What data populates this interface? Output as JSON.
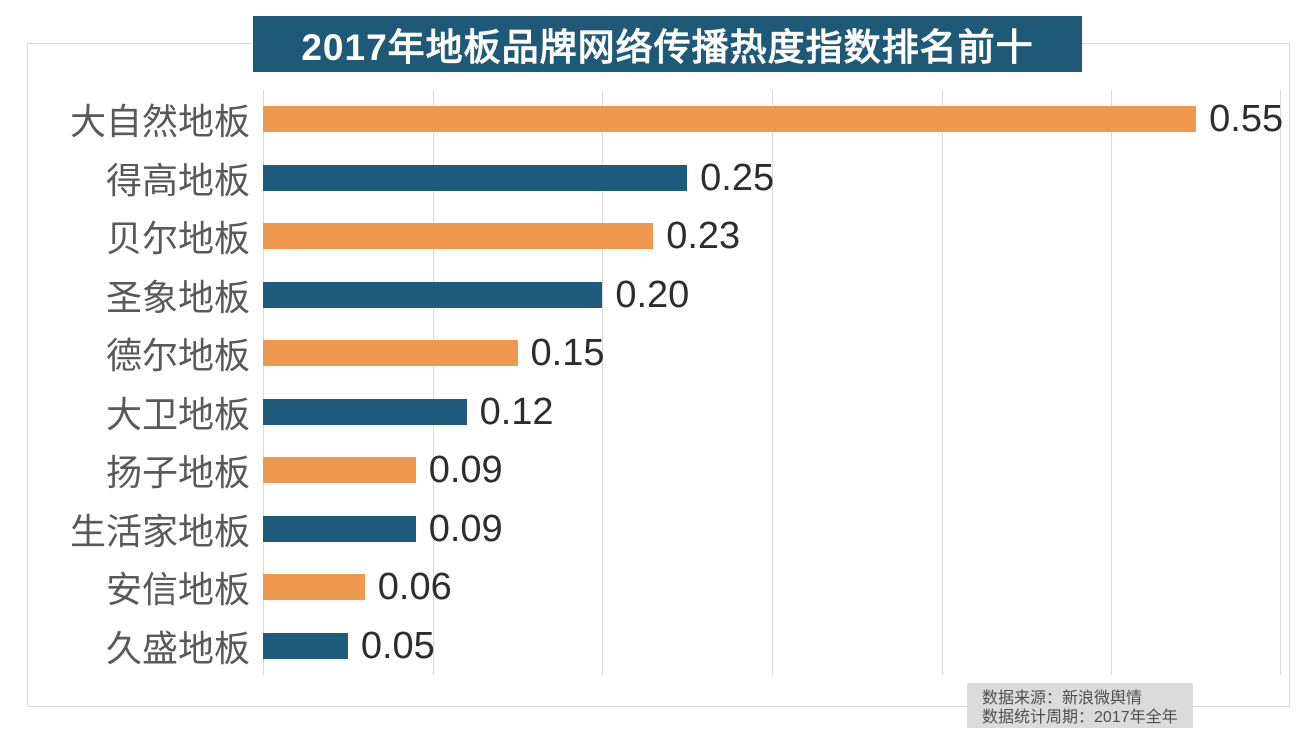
{
  "title": "2017年地板品牌网络传播热度指数排名前十",
  "source_note": {
    "line1": "数据来源：新浪微舆情",
    "line2": "数据统计周期：2017年全年"
  },
  "colors": {
    "teal": "#1E5A78",
    "orange": "#EF9950",
    "gridline": "#D9D9D9",
    "label_text": "#595959",
    "value_text": "#2D2D2D",
    "title_text": "#FFFFFF",
    "source_bg": "#DBDBDB",
    "source_text": "#4F4F4F"
  },
  "chart_data": {
    "type": "bar",
    "orientation": "horizontal",
    "title": "2017年地板品牌网络传播热度指数排名前十",
    "categories": [
      "大自然地板",
      "得高地板",
      "贝尔地板",
      "圣象地板",
      "德尔地板",
      "大卫地板",
      "扬子地板",
      "生活家地板",
      "安信地板",
      "久盛地板"
    ],
    "values": [
      0.55,
      0.25,
      0.23,
      0.2,
      0.15,
      0.12,
      0.09,
      0.09,
      0.06,
      0.05
    ],
    "value_labels": [
      "0.55",
      "0.25",
      "0.23",
      "0.20",
      "0.15",
      "0.12",
      "0.09",
      "0.09",
      "0.06",
      "0.05"
    ],
    "bar_colors": [
      "#EF9950",
      "#1E5B7D",
      "#EF9950",
      "#1E5B7D",
      "#EF9950",
      "#1E5B7D",
      "#EF9950",
      "#1E5B7D",
      "#EF9950",
      "#1E5B7D"
    ],
    "xlabel": "",
    "ylabel": "",
    "xlim": [
      0,
      0.6
    ],
    "gridline_interval": 0.1,
    "grid": true,
    "legend": false,
    "value_label_position": "outside-end",
    "source_lines": [
      "数据来源：新浪微舆情",
      "数据统计周期：2017年全年"
    ]
  }
}
